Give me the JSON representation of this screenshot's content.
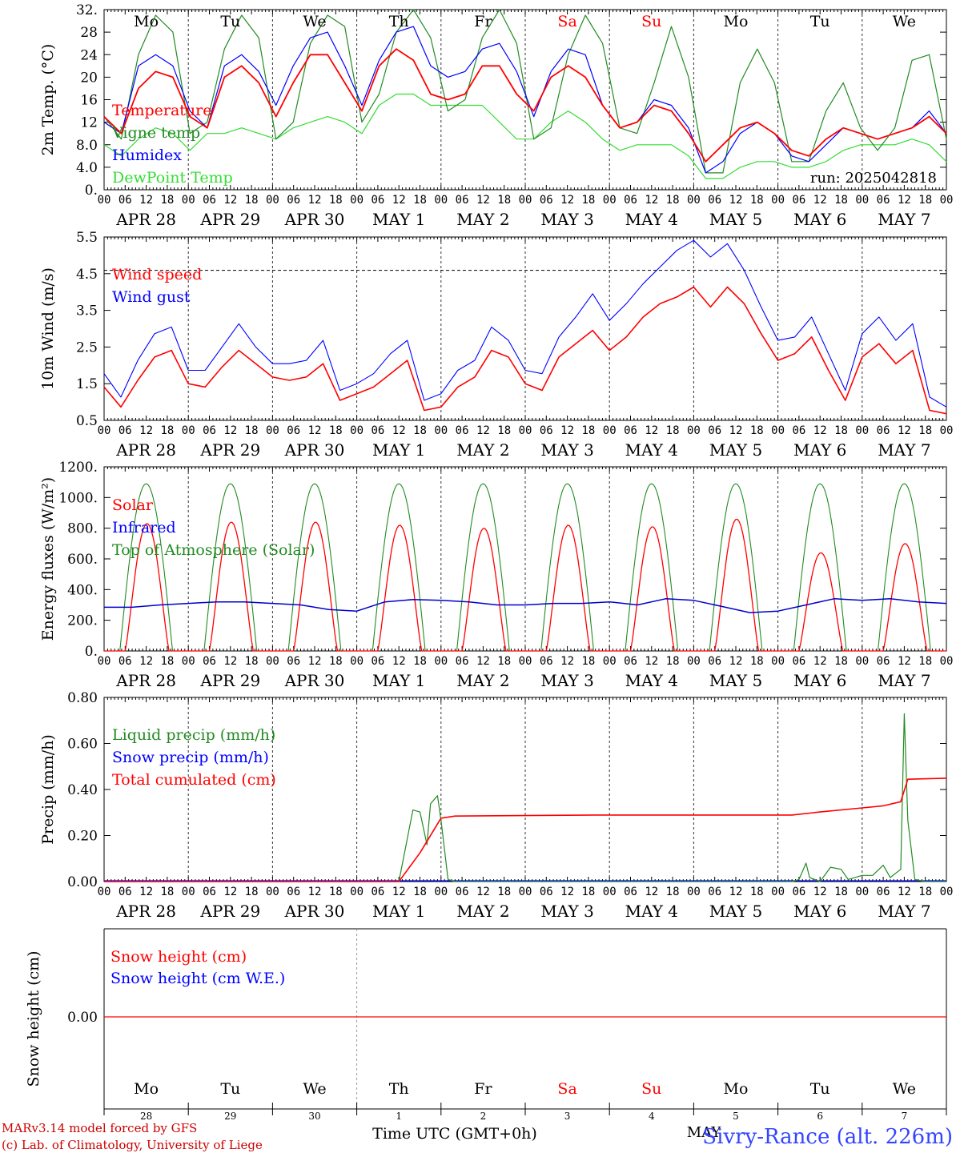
{
  "colors": {
    "red": "#ff0000",
    "green": "#228b22",
    "blue": "#0000ff",
    "lime": "#33dd33",
    "axis": "#000000",
    "navy": "#0000cc",
    "footer_red": "#cc0000",
    "station": "#3344ff"
  },
  "day_names": [
    "Mo",
    "Tu",
    "We",
    "Th",
    "Fr",
    "Sa",
    "Su",
    "Mo",
    "Tu",
    "We"
  ],
  "day_name_colors": [
    "black",
    "black",
    "black",
    "black",
    "black",
    "red",
    "red",
    "black",
    "black",
    "black"
  ],
  "date_labels": [
    "APR 28",
    "APR 29",
    "APR 30",
    "MAY  1",
    "MAY  2",
    "MAY  3",
    "MAY  4",
    "MAY  5",
    "MAY  6",
    "MAY  7"
  ],
  "hour_ticks": [
    "00",
    "06",
    "12",
    "18"
  ],
  "hour_end": "00",
  "bottom_day_numbers": [
    "28",
    "29",
    "30",
    "1",
    "2",
    "3",
    "4",
    "5",
    "6",
    "7"
  ],
  "month_mid": "MAY",
  "xlabel": "Time UTC (GMT+0h)",
  "credit_line1": "MARv3.14 model forced by GFS",
  "credit_line2": "(c) Lab. of Climatology, University of Liege",
  "station": "Sivry-Rance (alt. 226m)",
  "chart_data": [
    {
      "type": "line",
      "ylabel": "2m Temp. (°C)",
      "ylim": [
        0,
        32
      ],
      "yticks": [
        "0.",
        "4.0",
        "8.0",
        "12",
        "16",
        "20",
        "24",
        "28",
        "32."
      ],
      "run_label": "run: 2025042818",
      "legend": [
        "Temperature",
        "Vigne temp",
        "Humidex",
        "DewPoint Temp"
      ],
      "x_hours_step": 12,
      "series": [
        {
          "name": "Temperature",
          "values": [
            13,
            10,
            18,
            21,
            20,
            13,
            11,
            20,
            22,
            19,
            13,
            19,
            24,
            24,
            19,
            14,
            22,
            25,
            23,
            17,
            16,
            17,
            22,
            22,
            17,
            14,
            20,
            22,
            20,
            15,
            11,
            12,
            15,
            14,
            10,
            5,
            8,
            11,
            12,
            10,
            7,
            6,
            9,
            11,
            10,
            9,
            10,
            11,
            13,
            10
          ]
        },
        {
          "name": "Vigne temp",
          "values": [
            13,
            9,
            24,
            31,
            28,
            10,
            12,
            25,
            31,
            27,
            9,
            12,
            26,
            31,
            29,
            12,
            17,
            28,
            32,
            27,
            14,
            16,
            27,
            32,
            26,
            9,
            11,
            24,
            31,
            26,
            11,
            10,
            19,
            29,
            20,
            3,
            3,
            19,
            25,
            19,
            5,
            5,
            14,
            19,
            11,
            7,
            11,
            23,
            24,
            9
          ]
        },
        {
          "name": "Humidex",
          "values": [
            12,
            10,
            22,
            24,
            22,
            14,
            11,
            22,
            24,
            21,
            15,
            22,
            27,
            28,
            22,
            15,
            23,
            28,
            29,
            22,
            20,
            21,
            25,
            26,
            21,
            13,
            21,
            25,
            24,
            15,
            11,
            12,
            16,
            15,
            11,
            3,
            5,
            10,
            12,
            10,
            6,
            5,
            8,
            11,
            10,
            9,
            10,
            11,
            14,
            10
          ]
        },
        {
          "name": "DewPoint Temp",
          "values": [
            8,
            6,
            9,
            11,
            10,
            7,
            10,
            10,
            11,
            10,
            9,
            11,
            12,
            13,
            12,
            10,
            15,
            17,
            17,
            15,
            15,
            15,
            15,
            12,
            9,
            9,
            12,
            14,
            12,
            9,
            7,
            8,
            8,
            8,
            6,
            2,
            2,
            4,
            5,
            5,
            4,
            4,
            5,
            7,
            8,
            8,
            8,
            9,
            8,
            5
          ]
        }
      ]
    },
    {
      "type": "line",
      "ylabel": "10m Wind (m/s)",
      "ylim": [
        0.5,
        6.0
      ],
      "yticks": [
        "0.5",
        "1.5",
        "2.5",
        "3.5",
        "4.5",
        "5.5"
      ],
      "reference_line": 5.0,
      "legend": [
        "Wind speed",
        "Wind gust"
      ],
      "x_hours_step": 6,
      "series": [
        {
          "name": "Wind speed",
          "values": [
            1.5,
            0.9,
            1.7,
            2.4,
            2.6,
            1.6,
            1.5,
            2.1,
            2.6,
            2.2,
            1.8,
            1.7,
            1.8,
            2.2,
            1.1,
            1.3,
            1.5,
            1.9,
            2.3,
            0.8,
            0.9,
            1.5,
            1.8,
            2.6,
            2.4,
            1.6,
            1.4,
            2.4,
            2.8,
            3.2,
            2.6,
            3.0,
            3.6,
            4.0,
            4.2,
            4.5,
            3.9,
            4.5,
            4.0,
            3.1,
            2.3,
            2.5,
            3.0,
            2.0,
            1.1,
            2.4,
            2.8,
            2.2,
            2.6,
            0.8,
            0.7
          ]
        },
        {
          "name": "Wind gust",
          "values": [
            1.9,
            1.2,
            2.3,
            3.1,
            3.3,
            2.0,
            2.0,
            2.7,
            3.4,
            2.7,
            2.2,
            2.2,
            2.3,
            2.9,
            1.4,
            1.6,
            1.9,
            2.5,
            2.9,
            1.1,
            1.3,
            2.0,
            2.3,
            3.3,
            2.9,
            2.0,
            1.9,
            3.0,
            3.6,
            4.3,
            3.5,
            4.0,
            4.6,
            5.1,
            5.6,
            5.9,
            5.4,
            5.8,
            5.0,
            3.9,
            2.9,
            3.0,
            3.6,
            2.5,
            1.4,
            3.1,
            3.6,
            2.9,
            3.4,
            1.2,
            0.9
          ]
        }
      ]
    },
    {
      "type": "line",
      "ylabel": "Energy fluxes (W/m²)",
      "ylim": [
        0,
        1200
      ],
      "yticks": [
        "0.",
        "200.",
        "400.",
        "600.",
        "800.",
        "1000.",
        "1200."
      ],
      "legend": [
        "Solar",
        "Infrared",
        "Top of Atmosphere (Solar)"
      ],
      "toa_peak": 1090,
      "solar_peaks": [
        830,
        840,
        840,
        820,
        800,
        820,
        810,
        860,
        640,
        700
      ],
      "infrared_base": [
        285,
        285,
        300,
        310,
        320,
        320,
        310,
        300,
        270,
        260,
        320,
        335,
        330,
        320,
        300,
        300,
        310,
        310,
        320,
        300,
        340,
        330,
        290,
        250,
        260,
        300,
        340,
        330,
        340,
        320,
        310
      ],
      "series_names": [
        "Solar",
        "Infrared",
        "Top of Atmosphere (Solar)"
      ]
    },
    {
      "type": "line",
      "ylabel": "Precip (mm/h)",
      "ylim": [
        0,
        0.9
      ],
      "yticks": [
        "0.00",
        "0.20",
        "0.40",
        "0.60",
        "0.80"
      ],
      "legend": [
        "Liquid precip (mm/h)",
        "Snow precip (mm/h)",
        "Total cumulated (cm)"
      ],
      "series": [
        {
          "name": "Liquid precip (mm/h)",
          "points": [
            [
              0,
              0
            ],
            [
              84,
              0
            ],
            [
              88,
              0.35
            ],
            [
              90,
              0.34
            ],
            [
              92,
              0.18
            ],
            [
              93,
              0.38
            ],
            [
              95,
              0.42
            ],
            [
              96,
              0.3
            ],
            [
              98,
              0.01
            ],
            [
              100,
              0
            ],
            [
              196,
              0
            ],
            [
              198,
              0.01
            ],
            [
              200,
              0.09
            ],
            [
              201,
              0.02
            ],
            [
              204,
              0
            ],
            [
              207,
              0.07
            ],
            [
              210,
              0.06
            ],
            [
              212,
              0.01
            ],
            [
              216,
              0.03
            ],
            [
              219,
              0.03
            ],
            [
              222,
              0.08
            ],
            [
              224,
              0.02
            ],
            [
              227,
              0.06
            ],
            [
              228,
              0.82
            ],
            [
              229,
              0.3
            ],
            [
              231,
              0.01
            ],
            [
              234,
              0
            ],
            [
              240,
              0
            ]
          ]
        },
        {
          "name": "Total cumulated (cm)",
          "points": [
            [
              0,
              0
            ],
            [
              84,
              0
            ],
            [
              90,
              0.14
            ],
            [
              96,
              0.31
            ],
            [
              100,
              0.32
            ],
            [
              140,
              0.325
            ],
            [
              196,
              0.325
            ],
            [
              204,
              0.34
            ],
            [
              216,
              0.36
            ],
            [
              222,
              0.37
            ],
            [
              227,
              0.39
            ],
            [
              229,
              0.5
            ],
            [
              240,
              0.505
            ]
          ]
        }
      ]
    },
    {
      "type": "line",
      "ylabel": "Snow height (cm)",
      "yticks": [
        "0.00"
      ],
      "legend": [
        "Snow height (cm)",
        "Snow height (cm W.E.)"
      ],
      "series": [
        {
          "name": "Snow height (cm)",
          "values": [
            0,
            0
          ]
        }
      ]
    }
  ]
}
